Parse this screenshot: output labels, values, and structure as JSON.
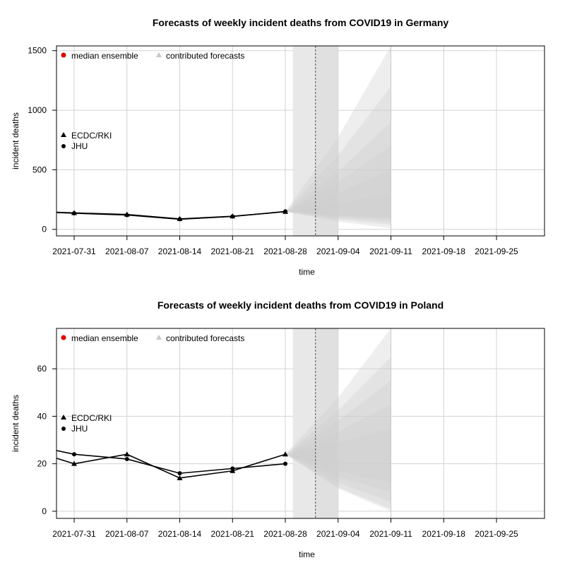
{
  "chart_data": [
    {
      "type": "line",
      "title": "Forecasts of weekly incident deaths from COVID19 in Germany",
      "xlabel": "time",
      "ylabel": "incident deaths",
      "x_ticks": [
        "2021-07-31",
        "2021-08-07",
        "2021-08-14",
        "2021-08-21",
        "2021-08-28",
        "2021-09-04",
        "2021-09-11",
        "2021-09-18",
        "2021-09-25"
      ],
      "y_ticks": [
        0,
        500,
        1000,
        1500
      ],
      "ylim": [
        -55,
        1540
      ],
      "legend_top": [
        "median ensemble",
        "contributed forecasts"
      ],
      "legend_left": [
        "ECDC/RKI",
        "JHU"
      ],
      "forecast_date": "2021-08-30",
      "forecast_bands": [
        {
          "lo": 100,
          "hi": 1540
        },
        {
          "lo": 90,
          "hi": 1200
        },
        {
          "lo": 80,
          "hi": 900
        },
        {
          "lo": 60,
          "hi": 700
        },
        {
          "lo": 40,
          "hi": 500
        },
        {
          "lo": 10,
          "hi": 300
        }
      ],
      "series": [
        {
          "name": "ECDC/RKI",
          "marker": "triangle",
          "x": [
            "2021-07-28",
            "2021-07-31",
            "2021-08-07",
            "2021-08-14",
            "2021-08-21",
            "2021-08-28"
          ],
          "values": [
            145,
            138,
            125,
            88,
            110,
            148
          ]
        },
        {
          "name": "JHU",
          "marker": "circle",
          "x": [
            "2021-07-28",
            "2021-07-31",
            "2021-08-07",
            "2021-08-14",
            "2021-08-21",
            "2021-08-28"
          ],
          "values": [
            143,
            135,
            120,
            85,
            108,
            150
          ]
        }
      ]
    },
    {
      "type": "line",
      "title": "Forecasts of weekly incident deaths from COVID19 in Poland",
      "xlabel": "time",
      "ylabel": "incident deaths",
      "x_ticks": [
        "2021-07-31",
        "2021-08-07",
        "2021-08-14",
        "2021-08-21",
        "2021-08-28",
        "2021-09-04",
        "2021-09-11",
        "2021-09-18",
        "2021-09-25"
      ],
      "y_ticks": [
        0,
        20,
        40,
        60
      ],
      "ylim": [
        -3,
        77
      ],
      "legend_top": [
        "median ensemble",
        "contributed forecasts"
      ],
      "legend_left": [
        "ECDC/RKI",
        "JHU"
      ],
      "forecast_date": "2021-08-30",
      "forecast_bands": [
        {
          "lo": 0,
          "hi": 77
        },
        {
          "lo": 1,
          "hi": 65
        },
        {
          "lo": 4,
          "hi": 55
        },
        {
          "lo": 8,
          "hi": 45
        },
        {
          "lo": 12,
          "hi": 35
        }
      ],
      "series": [
        {
          "name": "ECDC/RKI",
          "marker": "triangle",
          "x": [
            "2021-07-28",
            "2021-07-31",
            "2021-08-07",
            "2021-08-14",
            "2021-08-21",
            "2021-08-28"
          ],
          "values": [
            23,
            20,
            24,
            14,
            17,
            24
          ]
        },
        {
          "name": "JHU",
          "marker": "circle",
          "x": [
            "2021-07-28",
            "2021-07-31",
            "2021-08-07",
            "2021-08-14",
            "2021-08-21",
            "2021-08-28"
          ],
          "values": [
            26,
            24,
            22,
            16,
            18,
            20
          ]
        }
      ]
    }
  ]
}
